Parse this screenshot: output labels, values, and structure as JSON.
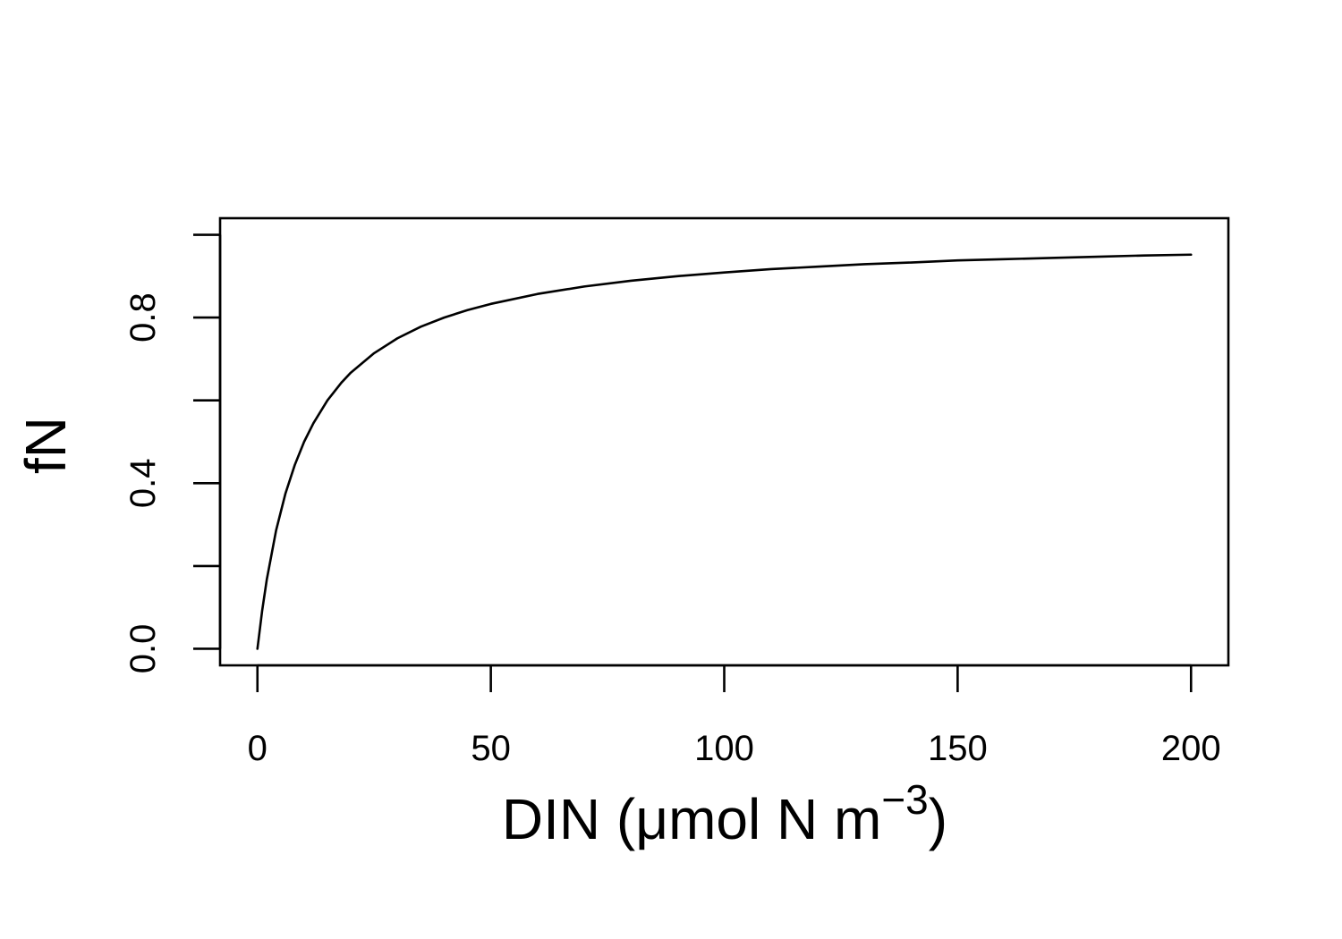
{
  "chart_data": {
    "type": "line",
    "title": "",
    "xlabel": {
      "text": "DIN (μmol N m",
      "superscript": "−3",
      "suffix": ")"
    },
    "ylabel": "fN",
    "xlim": [
      -8,
      208
    ],
    "ylim": [
      -0.04,
      1.04
    ],
    "x_ticks": [
      0,
      50,
      100,
      150,
      200
    ],
    "x_tick_labels": [
      "0",
      "50",
      "100",
      "150",
      "200"
    ],
    "y_ticks": [
      0.0,
      0.2,
      0.4,
      0.6,
      0.8,
      1.0
    ],
    "y_tick_labels": [
      "0.0",
      "",
      "0.4",
      "",
      "0.8",
      ""
    ],
    "grid": false,
    "legend": "none",
    "line_color": "#000000",
    "series": [
      {
        "x": [
          0,
          1,
          2,
          4,
          6,
          8,
          10,
          12,
          15,
          18,
          20,
          25,
          30,
          35,
          40,
          45,
          50,
          60,
          70,
          80,
          90,
          100,
          110,
          120,
          130,
          140,
          150,
          160,
          170,
          180,
          190,
          200
        ],
        "y": [
          0.0,
          0.091,
          0.167,
          0.286,
          0.375,
          0.444,
          0.5,
          0.545,
          0.6,
          0.643,
          0.667,
          0.714,
          0.75,
          0.778,
          0.8,
          0.818,
          0.833,
          0.857,
          0.875,
          0.889,
          0.9,
          0.909,
          0.917,
          0.923,
          0.929,
          0.933,
          0.938,
          0.941,
          0.944,
          0.947,
          0.95,
          0.952
        ]
      }
    ]
  }
}
